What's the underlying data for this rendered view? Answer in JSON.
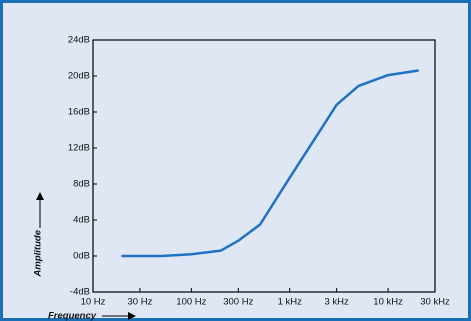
{
  "chart_data": {
    "type": "line",
    "x_label": "Frequency",
    "y_label": "Amplitude",
    "xscale": "log",
    "x": [
      20,
      50,
      100,
      200,
      300,
      500,
      1000,
      2000,
      3000,
      5000,
      10000,
      20000
    ],
    "series": [
      {
        "name": "Amplitude",
        "color": "#1f72c4",
        "values": [
          0,
          0,
          0.2,
          0.6,
          1.7,
          3.5,
          8.7,
          13.8,
          16.8,
          18.9,
          20.1,
          20.6
        ]
      }
    ],
    "xlim": [
      10,
      30000
    ],
    "xticks": [
      {
        "value": 10,
        "label": "10 Hz"
      },
      {
        "value": 30,
        "label": "30 Hz"
      },
      {
        "value": 100,
        "label": "100 Hz"
      },
      {
        "value": 300,
        "label": "300 Hz"
      },
      {
        "value": 1000,
        "label": "1 kHz"
      },
      {
        "value": 3000,
        "label": "3 kHz"
      },
      {
        "value": 10000,
        "label": "10 kHz"
      },
      {
        "value": 30000,
        "label": "30 kHz"
      }
    ],
    "ylim": [
      -4,
      24
    ],
    "yticks": [
      {
        "value": -4,
        "label": "-4dB"
      },
      {
        "value": 0,
        "label": "0dB"
      },
      {
        "value": 4,
        "label": "4dB"
      },
      {
        "value": 8,
        "label": "8dB"
      },
      {
        "value": 12,
        "label": "12dB"
      },
      {
        "value": 16,
        "label": "16dB"
      },
      {
        "value": 20,
        "label": "20dB"
      },
      {
        "value": 24,
        "label": "24dB"
      }
    ],
    "grid": false
  }
}
